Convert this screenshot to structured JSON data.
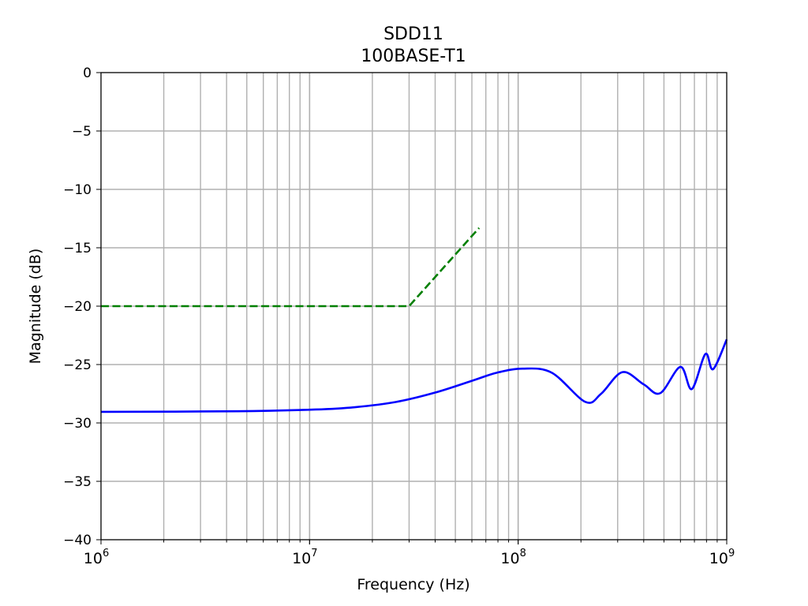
{
  "chart_data": {
    "type": "line",
    "title": [
      "SDD11",
      "100BASE-T1"
    ],
    "xlabel": "Frequency (Hz)",
    "ylabel": "Magnitude (dB)",
    "xscale": "log",
    "xlim": [
      1000000,
      1000000000
    ],
    "ylim": [
      -40,
      0
    ],
    "grid": "major and minor (x), major (y)",
    "xticks": [
      {
        "v": 1000000,
        "base": "10",
        "exp": "6"
      },
      {
        "v": 10000000,
        "base": "10",
        "exp": "7"
      },
      {
        "v": 100000000,
        "base": "10",
        "exp": "8"
      },
      {
        "v": 1000000000,
        "base": "10",
        "exp": "9"
      }
    ],
    "yticks": [
      0,
      -5,
      -10,
      -15,
      -20,
      -25,
      -30,
      -35,
      -40
    ],
    "ytick_labels": [
      "0",
      "−5",
      "−10",
      "−15",
      "−20",
      "−25",
      "−30",
      "−35",
      "−40"
    ],
    "series": [
      {
        "color": "#0000ff",
        "style": "solid",
        "x": [
          1000000,
          4500000,
          10700000,
          16500000,
          26000000,
          40000000,
          61000000,
          79000000,
          105000000,
          145000000,
          210000000,
          250000000,
          316000000,
          400000000,
          480000000,
          600000000,
          680000000,
          790000000,
          860000000,
          1000000000
        ],
        "y": [
          -29.05,
          -29.0,
          -28.85,
          -28.65,
          -28.2,
          -27.4,
          -26.35,
          -25.7,
          -25.35,
          -25.7,
          -28.2,
          -27.5,
          -25.65,
          -26.7,
          -27.45,
          -25.2,
          -27.1,
          -24.1,
          -25.4,
          -22.85
        ]
      },
      {
        "color": "#007f00",
        "style": "dashed",
        "x": [
          1000000,
          30000000,
          65000000
        ],
        "y": [
          -20,
          -20,
          -13.3
        ]
      }
    ]
  }
}
